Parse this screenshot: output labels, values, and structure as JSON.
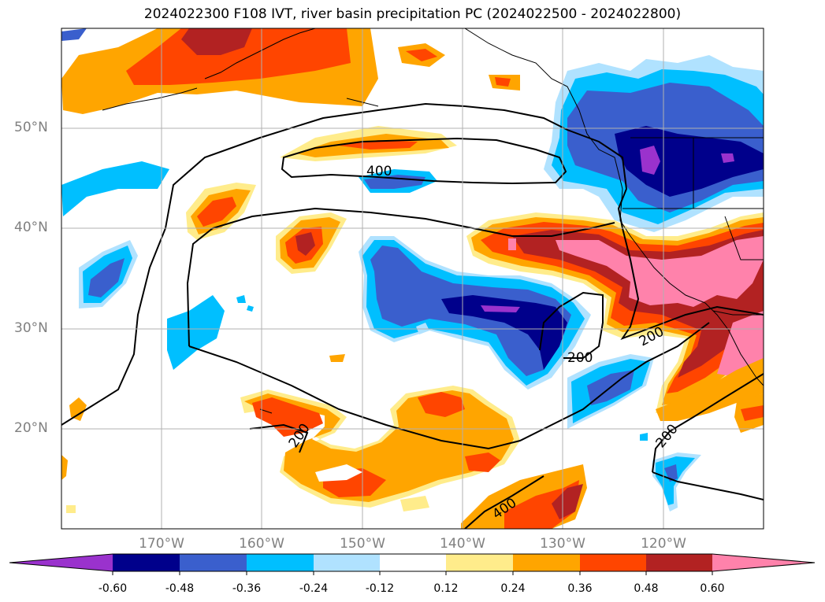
{
  "title": "2024022300 F108 IVT, river basin precipitation PC (2024022500 - 2024022800)",
  "map": {
    "extent": {
      "lon_min": -180,
      "lon_max": -110,
      "lat_min": 10,
      "lat_max": 60
    },
    "lat_ticks": [
      {
        "value": 50,
        "label": "50°N"
      },
      {
        "value": 40,
        "label": "40°N"
      },
      {
        "value": 30,
        "label": "30°N"
      },
      {
        "value": 20,
        "label": "20°N"
      }
    ],
    "lon_ticks": [
      {
        "value": -170,
        "label": "170°W"
      },
      {
        "value": -160,
        "label": "160°W"
      },
      {
        "value": -150,
        "label": "150°W"
      },
      {
        "value": -140,
        "label": "140°W"
      },
      {
        "value": -130,
        "label": "130°W"
      },
      {
        "value": -120,
        "label": "120°W"
      }
    ],
    "contour_labels": [
      "400",
      "200",
      "200",
      "200",
      "200",
      "400"
    ]
  },
  "colorbar": {
    "levels": [
      "-0.60",
      "-0.48",
      "-0.36",
      "-0.24",
      "-0.12",
      "0.12",
      "0.24",
      "0.36",
      "0.48",
      "0.60"
    ],
    "colors": [
      "#9a32cd",
      "#00008b",
      "#3a5fcd",
      "#00bfff",
      "#b0e2ff",
      "#ffffff",
      "#ffec8b",
      "#ffa500",
      "#ff4500",
      "#b22222",
      "#ff82ab"
    ]
  }
}
